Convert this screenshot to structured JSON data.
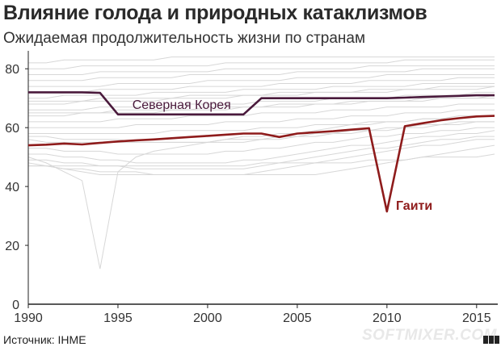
{
  "header": {
    "title": "Влияние голода и природных катаклизмов",
    "subtitle": "Ожидаемая продолжительность жизни по странам"
  },
  "footer": {
    "source": "Источник: IHME",
    "watermark": "SOFTMIXER.COM"
  },
  "colors": {
    "background_lines": "#d7d7d7",
    "north_korea": "#4a1a3c",
    "haiti": "#8e1b1b",
    "axis": "#222222"
  },
  "chart_data": {
    "type": "line",
    "title": "Влияние голода и природных катаклизмов",
    "subtitle": "Ожидаемая продолжительность жизни по странам",
    "xlabel": "",
    "ylabel": "",
    "xlim": [
      1990,
      2016
    ],
    "ylim": [
      0,
      85
    ],
    "xticks": [
      1990,
      1995,
      2000,
      2005,
      2010,
      2015
    ],
    "yticks": [
      0,
      20,
      40,
      60,
      80
    ],
    "grid": false,
    "x": [
      1990,
      1991,
      1992,
      1993,
      1994,
      1995,
      1996,
      1997,
      1998,
      1999,
      2000,
      2001,
      2002,
      2003,
      2004,
      2005,
      2006,
      2007,
      2008,
      2009,
      2010,
      2011,
      2012,
      2013,
      2014,
      2015,
      2016
    ],
    "series": [
      {
        "name": "Северная Корея",
        "highlight": true,
        "color": "#4a1a3c",
        "values": [
          72,
          72,
          72,
          72,
          71.8,
          64.5,
          64.5,
          64.5,
          64.5,
          64.5,
          64.5,
          64.5,
          64.5,
          70,
          70,
          70,
          70,
          70,
          70,
          70,
          70,
          70.2,
          70.4,
          70.6,
          70.8,
          71,
          71
        ]
      },
      {
        "name": "Гаити",
        "highlight": true,
        "color": "#8e1b1b",
        "values": [
          54,
          54.2,
          54.6,
          54.3,
          54.8,
          55.3,
          55.7,
          56,
          56.4,
          56.8,
          57.2,
          57.6,
          58,
          58,
          56.8,
          58,
          58.4,
          58.8,
          59.3,
          59.8,
          31.5,
          60.5,
          61.5,
          62.5,
          63.2,
          63.8,
          64
        ]
      },
      {
        "highlight": false,
        "values": [
          50,
          48,
          45,
          42,
          12,
          45,
          50,
          52,
          53,
          54,
          55,
          56,
          57,
          57,
          58,
          58,
          59,
          60,
          61,
          61,
          62,
          62,
          63,
          63,
          64,
          64,
          64
        ]
      },
      {
        "highlight": false,
        "values": [
          82,
          82,
          83,
          83,
          83,
          83,
          83,
          83,
          84,
          84,
          84,
          84,
          84,
          84,
          84,
          84,
          84,
          84,
          84,
          84,
          84,
          84,
          84,
          84,
          84,
          84,
          84
        ]
      },
      {
        "highlight": false,
        "values": [
          80,
          80,
          80,
          81,
          81,
          81,
          81,
          81,
          81,
          81,
          81,
          82,
          82,
          82,
          82,
          82,
          82,
          82,
          82,
          82,
          82,
          83,
          83,
          83,
          83,
          83,
          83
        ]
      },
      {
        "highlight": false,
        "values": [
          78,
          78,
          78,
          78,
          79,
          79,
          79,
          79,
          79,
          79,
          79,
          80,
          80,
          80,
          80,
          80,
          80,
          80,
          80,
          81,
          81,
          81,
          81,
          81,
          81,
          81,
          81
        ]
      },
      {
        "highlight": false,
        "values": [
          76,
          76,
          76,
          76,
          77,
          77,
          77,
          77,
          77,
          78,
          78,
          78,
          78,
          78,
          78,
          79,
          79,
          79,
          79,
          79,
          79,
          79,
          80,
          80,
          80,
          80,
          80
        ]
      },
      {
        "highlight": false,
        "values": [
          74,
          74,
          74,
          74,
          74,
          75,
          75,
          75,
          75,
          75,
          76,
          76,
          76,
          76,
          76,
          77,
          77,
          77,
          77,
          77,
          78,
          78,
          78,
          78,
          78,
          78,
          78
        ]
      },
      {
        "highlight": false,
        "values": [
          72,
          72,
          72,
          72,
          73,
          73,
          73,
          73,
          73,
          74,
          74,
          74,
          74,
          74,
          75,
          75,
          75,
          75,
          75,
          76,
          76,
          76,
          76,
          76,
          77,
          77,
          77
        ]
      },
      {
        "highlight": false,
        "values": [
          70,
          70,
          71,
          71,
          71,
          71,
          71,
          72,
          72,
          72,
          72,
          72,
          73,
          73,
          73,
          73,
          73,
          74,
          74,
          74,
          74,
          74,
          75,
          75,
          75,
          75,
          75
        ]
      },
      {
        "highlight": false,
        "values": [
          68,
          68,
          68,
          69,
          69,
          69,
          69,
          69,
          70,
          70,
          70,
          70,
          71,
          71,
          71,
          71,
          72,
          72,
          72,
          72,
          72,
          73,
          73,
          73,
          73,
          73,
          74
        ]
      },
      {
        "highlight": false,
        "values": [
          66,
          66,
          66,
          66,
          67,
          67,
          67,
          67,
          67,
          68,
          68,
          68,
          68,
          69,
          69,
          69,
          69,
          70,
          70,
          70,
          70,
          71,
          71,
          71,
          71,
          72,
          72
        ]
      },
      {
        "highlight": false,
        "values": [
          64,
          64,
          64,
          65,
          65,
          65,
          65,
          65,
          66,
          66,
          66,
          66,
          67,
          67,
          67,
          67,
          68,
          68,
          68,
          69,
          69,
          69,
          69,
          70,
          70,
          70,
          70
        ]
      },
      {
        "highlight": false,
        "values": [
          62,
          62,
          62,
          62,
          62,
          63,
          63,
          63,
          63,
          64,
          64,
          64,
          64,
          65,
          65,
          65,
          65,
          66,
          66,
          66,
          67,
          67,
          67,
          67,
          68,
          68,
          68
        ]
      },
      {
        "highlight": false,
        "values": [
          60,
          60,
          60,
          60,
          60,
          60,
          61,
          61,
          61,
          61,
          61,
          62,
          62,
          62,
          62,
          63,
          63,
          63,
          64,
          64,
          64,
          65,
          65,
          65,
          66,
          66,
          66
        ]
      },
      {
        "highlight": false,
        "values": [
          58,
          58,
          58,
          58,
          58,
          58,
          58,
          58,
          59,
          59,
          59,
          59,
          59,
          60,
          60,
          60,
          61,
          61,
          61,
          62,
          62,
          62,
          63,
          63,
          63,
          64,
          64
        ]
      },
      {
        "highlight": false,
        "values": [
          56,
          55,
          55,
          55,
          55,
          55,
          55,
          55,
          55,
          55,
          55,
          56,
          56,
          56,
          57,
          57,
          58,
          58,
          59,
          59,
          60,
          60,
          61,
          61,
          62,
          62,
          62
        ]
      },
      {
        "highlight": false,
        "values": [
          53,
          53,
          52,
          52,
          52,
          51,
          51,
          51,
          51,
          51,
          51,
          52,
          52,
          53,
          53,
          54,
          55,
          55,
          56,
          57,
          57,
          58,
          58,
          59,
          59,
          60,
          60
        ]
      },
      {
        "highlight": false,
        "values": [
          51,
          51,
          50,
          50,
          49,
          49,
          48,
          48,
          48,
          48,
          48,
          48,
          49,
          49,
          50,
          51,
          52,
          53,
          54,
          54,
          55,
          56,
          57,
          57,
          58,
          58,
          59
        ]
      },
      {
        "highlight": false,
        "values": [
          49,
          49,
          48,
          48,
          47,
          47,
          46,
          46,
          46,
          46,
          46,
          46,
          46,
          47,
          48,
          49,
          50,
          51,
          52,
          53,
          53,
          54,
          55,
          56,
          56,
          57,
          57
        ]
      },
      {
        "highlight": false,
        "values": [
          47,
          47,
          46,
          46,
          45,
          45,
          45,
          44,
          44,
          44,
          44,
          44,
          44,
          45,
          46,
          47,
          48,
          49,
          50,
          51,
          52,
          53,
          54,
          54,
          55,
          56,
          56
        ]
      },
      {
        "highlight": false,
        "values": [
          48,
          47,
          46,
          45,
          44,
          44,
          44,
          44,
          44,
          44,
          44,
          44,
          44,
          44,
          44,
          44,
          44,
          45,
          46,
          47,
          48,
          49,
          50,
          51,
          52,
          53,
          54
        ]
      },
      {
        "highlight": false,
        "values": [
          47,
          47,
          47,
          47,
          47,
          47,
          47,
          47,
          47,
          47,
          47,
          47,
          47,
          48,
          48,
          48,
          48,
          48,
          48,
          49,
          49,
          49,
          50,
          50,
          50,
          50,
          51
        ]
      },
      {
        "highlight": false,
        "values": [
          69,
          69,
          69,
          69,
          70,
          70,
          70,
          70,
          70,
          71,
          71,
          71,
          71,
          71,
          72,
          72,
          72,
          72,
          72,
          73,
          73,
          73,
          73,
          74,
          74,
          74,
          74
        ]
      },
      {
        "highlight": false,
        "values": [
          65,
          65,
          65,
          65,
          65,
          66,
          66,
          66,
          66,
          66,
          67,
          67,
          67,
          67,
          68,
          68,
          68,
          68,
          69,
          69,
          69,
          69,
          70,
          70,
          70,
          70,
          71
        ]
      },
      {
        "highlight": false,
        "values": [
          57,
          57,
          56,
          56,
          56,
          56,
          55,
          55,
          55,
          55,
          55,
          55,
          55,
          56,
          56,
          57,
          57,
          58,
          58,
          59,
          59,
          60,
          60,
          61,
          61,
          62,
          62
        ]
      }
    ],
    "annotations": [
      {
        "text": "Северная Корея",
        "series": "Северная Корея"
      },
      {
        "text": "Гаити",
        "series": "Гаити"
      }
    ]
  }
}
